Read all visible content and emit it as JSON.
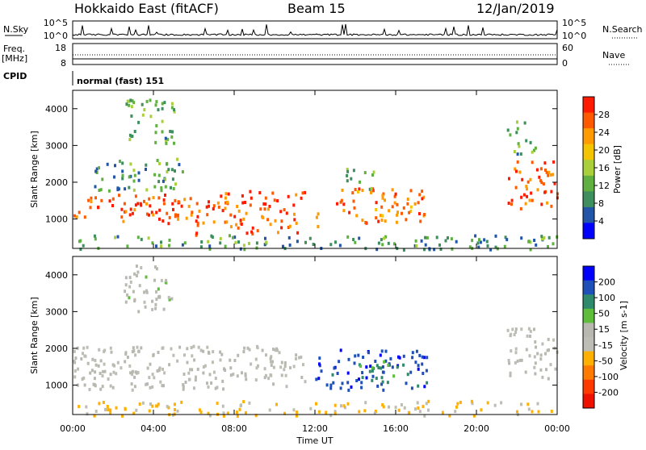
{
  "header": {
    "station": "Hokkaido East (fitACF)",
    "beam": "Beam 15",
    "date": "12/Jan/2019"
  },
  "panels": {
    "noise": {
      "left_label": "N.Sky",
      "right_label": "N.Search",
      "left_ticks": [
        "10^5",
        "10^0"
      ],
      "right_ticks": [
        "10^5",
        "10^0"
      ]
    },
    "freq": {
      "left_label_1": "Freq.",
      "left_label_2": "[MHz]",
      "right_label": "Nave",
      "left_ticks": [
        "18",
        "8"
      ],
      "right_ticks": [
        "60",
        "0"
      ]
    },
    "cpid": {
      "left_label": "CPID",
      "text": "normal (fast) 151"
    }
  },
  "colors": {
    "power_scale": [
      "#0000ff",
      "#2255a8",
      "#3f8e5e",
      "#5fb040",
      "#a9cf3b",
      "#f5c400",
      "#ff9b00",
      "#ff5a00",
      "#ff1a00"
    ],
    "velocity_scale": [
      "#0000ff",
      "#1f4fb8",
      "#2f8a6c",
      "#5fbd3c",
      "#b8b8b0",
      "#bdbdb5",
      "#ffb000",
      "#ff7a00",
      "#ff3a00",
      "#ee1100"
    ]
  },
  "chart_data": [
    {
      "type": "heatmap",
      "name": "power",
      "ylabel": "Slant Range [km]",
      "yticks": [
        1000,
        2000,
        3000,
        4000
      ],
      "ylim": [
        200,
        4500
      ],
      "xlim": [
        0,
        24
      ],
      "colorbar": {
        "label": "Power [dB]",
        "ticks": [
          "28",
          "24",
          "20",
          "16",
          "12",
          "8",
          "4"
        ],
        "range": [
          0,
          32
        ]
      },
      "patches": [
        {
          "x": [
            0.0,
            6.3
          ],
          "y": [
            900,
            1700
          ],
          "v": 28
        },
        {
          "x": [
            1.0,
            5.5
          ],
          "y": [
            1800,
            2700
          ],
          "v": 10
        },
        {
          "x": [
            6.0,
            11.5
          ],
          "y": [
            600,
            1800
          ],
          "v": 27
        },
        {
          "x": [
            12.0,
            12.5
          ],
          "y": [
            600,
            1200
          ],
          "v": 20
        },
        {
          "x": [
            13.0,
            17.5
          ],
          "y": [
            900,
            1900
          ],
          "v": 26
        },
        {
          "x": [
            13.5,
            15.0
          ],
          "y": [
            1700,
            2500
          ],
          "v": 12
        },
        {
          "x": [
            21.5,
            24.0
          ],
          "y": [
            1300,
            2600
          ],
          "v": 27
        },
        {
          "x": [
            21.5,
            23.0
          ],
          "y": [
            2700,
            3700
          ],
          "v": 12
        },
        {
          "x": [
            0.0,
            24.0
          ],
          "y": [
            200,
            600
          ],
          "v": 10
        },
        {
          "x": [
            2.5,
            5.0
          ],
          "y": [
            3000,
            4300
          ],
          "v": 12
        }
      ]
    },
    {
      "type": "heatmap",
      "name": "velocity",
      "ylabel": "Slant Range [km]",
      "yticks": [
        1000,
        2000,
        3000,
        4000
      ],
      "ylim": [
        200,
        4500
      ],
      "xlim": [
        0,
        24
      ],
      "xlabel": "Time UT",
      "xticks": [
        "00:00",
        "04:00",
        "08:00",
        "12:00",
        "16:00",
        "20:00",
        "00:00"
      ],
      "colorbar": {
        "label": "Velocity [m s-1]",
        "ticks": [
          "200",
          "100",
          "50",
          "15",
          "-15",
          "-50",
          "-100",
          "-200"
        ],
        "range": [
          -250,
          250
        ]
      },
      "patches": [
        {
          "x": [
            0.0,
            11.5
          ],
          "y": [
            900,
            2100
          ],
          "v": 0
        },
        {
          "x": [
            12.0,
            17.5
          ],
          "y": [
            900,
            2000
          ],
          "v": 180
        },
        {
          "x": [
            14.0,
            16.5
          ],
          "y": [
            1100,
            1700
          ],
          "v": 110
        },
        {
          "x": [
            21.5,
            24.0
          ],
          "y": [
            1200,
            2600
          ],
          "v": 0
        },
        {
          "x": [
            0.0,
            24.0
          ],
          "y": [
            200,
            600
          ],
          "v": -60
        },
        {
          "x": [
            2.5,
            5.0
          ],
          "y": [
            3000,
            4300
          ],
          "v": 20
        }
      ]
    }
  ]
}
